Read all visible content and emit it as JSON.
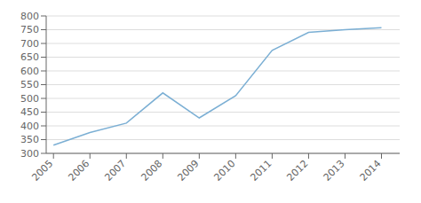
{
  "chart_data": {
    "type": "line",
    "x": [
      2005,
      2006,
      2007,
      2008,
      2009,
      2010,
      2011,
      2012,
      2013,
      2014
    ],
    "values": [
      330,
      376,
      410,
      520,
      429,
      510,
      675,
      740,
      750,
      757
    ],
    "color": "#7bafd4",
    "xlim": [
      2004.8,
      2014.5
    ],
    "xticks": [
      2005,
      2006,
      2007,
      2008,
      2009,
      2010,
      2011,
      2012,
      2013,
      2014
    ],
    "ylim": [
      300,
      800
    ],
    "yticks": [
      300,
      350,
      400,
      450,
      500,
      550,
      600,
      650,
      700,
      750,
      800
    ],
    "grid": true
  }
}
